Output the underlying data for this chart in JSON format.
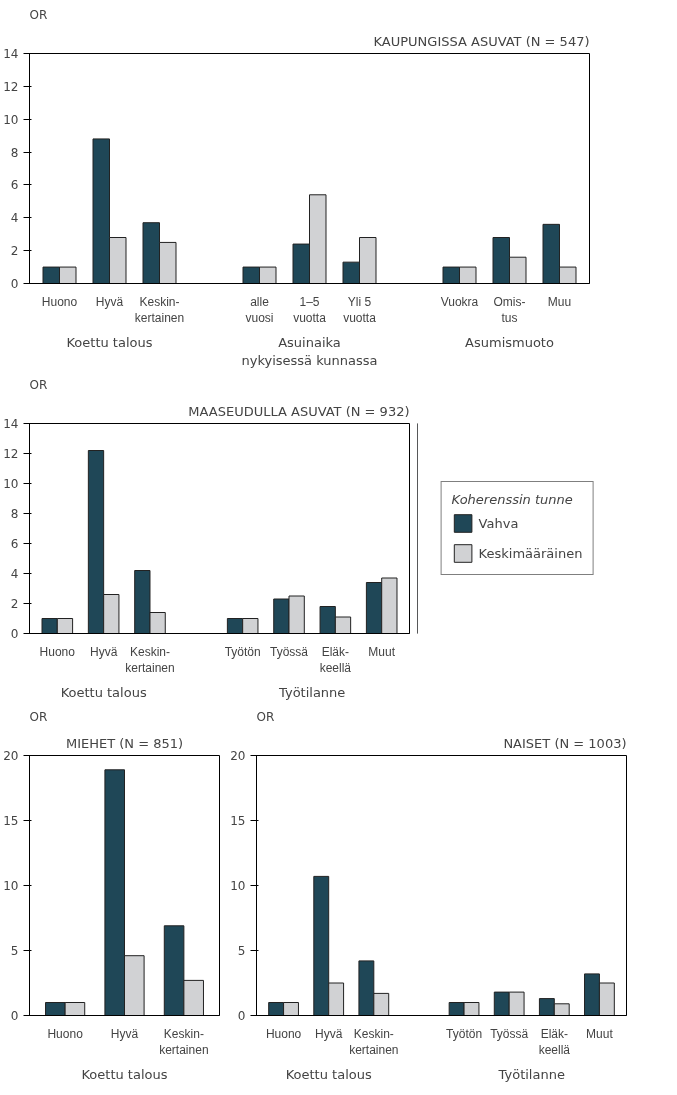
{
  "chart_data": [
    {
      "type": "bar",
      "title": "KAUPUNGISSA ASUVAT (N = 547)",
      "ylabel": "OR",
      "categories": [
        "Huono",
        "Hyvä",
        "Keskin-\nkertainen",
        null,
        "alle\nvuosi",
        "1–5\nvuotta",
        "Yli 5\nvuotta",
        null,
        "Vuokra",
        "Omis-\ntus",
        "Muu"
      ],
      "series": [
        {
          "color": "#1f4757",
          "values": [
            1,
            8.8,
            3.7,
            null,
            1,
            2.4,
            1.3,
            null,
            1,
            2.8,
            3.6
          ]
        },
        {
          "color": "#d1d2d4",
          "values": [
            1,
            2.8,
            2.5,
            null,
            1,
            5.4,
            2.8,
            null,
            1,
            1.6,
            1.0
          ]
        }
      ],
      "ylim": [
        0,
        14
      ],
      "yticks": [
        0,
        2,
        4,
        6,
        8,
        10,
        12,
        14
      ],
      "grid": false,
      "legend": false,
      "annotations": [
        "Koettu talous",
        "Asuinaika\nnykyisessä kunnassa",
        "Asumismuoto"
      ]
    },
    {
      "type": "bar",
      "title": "MAASEUDULLA ASUVAT (N = 932)",
      "ylabel": "OR",
      "legend_title": "Koherenssin tunne",
      "categories": [
        "Huono",
        "Hyvä",
        "Keskin-\nkertainen",
        null,
        "Työtön",
        "Työssä",
        "Eläk-\nkeellä",
        "Muut"
      ],
      "series": [
        {
          "name": "Vahva",
          "color": "#1f4757",
          "values": [
            1,
            12.2,
            4.2,
            null,
            1,
            2.3,
            1.8,
            3.4
          ]
        },
        {
          "name": "Keskimääräinen",
          "color": "#d1d2d4",
          "values": [
            1,
            2.6,
            1.4,
            null,
            1,
            2.5,
            1.1,
            3.7
          ]
        }
      ],
      "ylim": [
        0,
        14
      ],
      "yticks": [
        0,
        2,
        4,
        6,
        8,
        10,
        12,
        14
      ],
      "grid": false,
      "legend": "right",
      "annotations": [
        "Koettu talous",
        "Työtilanne"
      ]
    },
    {
      "type": "bar",
      "title": "MIEHET (N = 851)",
      "ylabel": "OR",
      "categories": [
        "Huono",
        "Hyvä",
        "Keskin-\nkertainen"
      ],
      "series": [
        {
          "color": "#1f4757",
          "values": [
            1,
            18.9,
            6.9
          ]
        },
        {
          "color": "#d1d2d4",
          "values": [
            1,
            4.6,
            2.7
          ]
        }
      ],
      "ylim": [
        0,
        20
      ],
      "yticks": [
        0,
        5,
        10,
        15,
        20
      ],
      "grid": false,
      "legend": false,
      "annotations": [
        "Koettu talous"
      ]
    },
    {
      "type": "bar",
      "title": "NAISET (N = 1003)",
      "ylabel": "OR",
      "categories": [
        "Huono",
        "Hyvä",
        "Keskin-\nkertainen",
        null,
        "Työtön",
        "Työssä",
        "Eläk-\nkeellä",
        "Muut"
      ],
      "series": [
        {
          "color": "#1f4757",
          "values": [
            1,
            10.7,
            4.2,
            null,
            1,
            1.8,
            1.3,
            3.2
          ]
        },
        {
          "color": "#d1d2d4",
          "values": [
            1,
            2.5,
            1.7,
            null,
            1,
            1.8,
            0.9,
            2.5
          ]
        }
      ],
      "ylim": [
        0,
        20
      ],
      "yticks": [
        0,
        5,
        10,
        15,
        20
      ],
      "grid": false,
      "legend": false,
      "annotations": [
        "Koettu talous",
        "Työtilanne"
      ]
    }
  ]
}
